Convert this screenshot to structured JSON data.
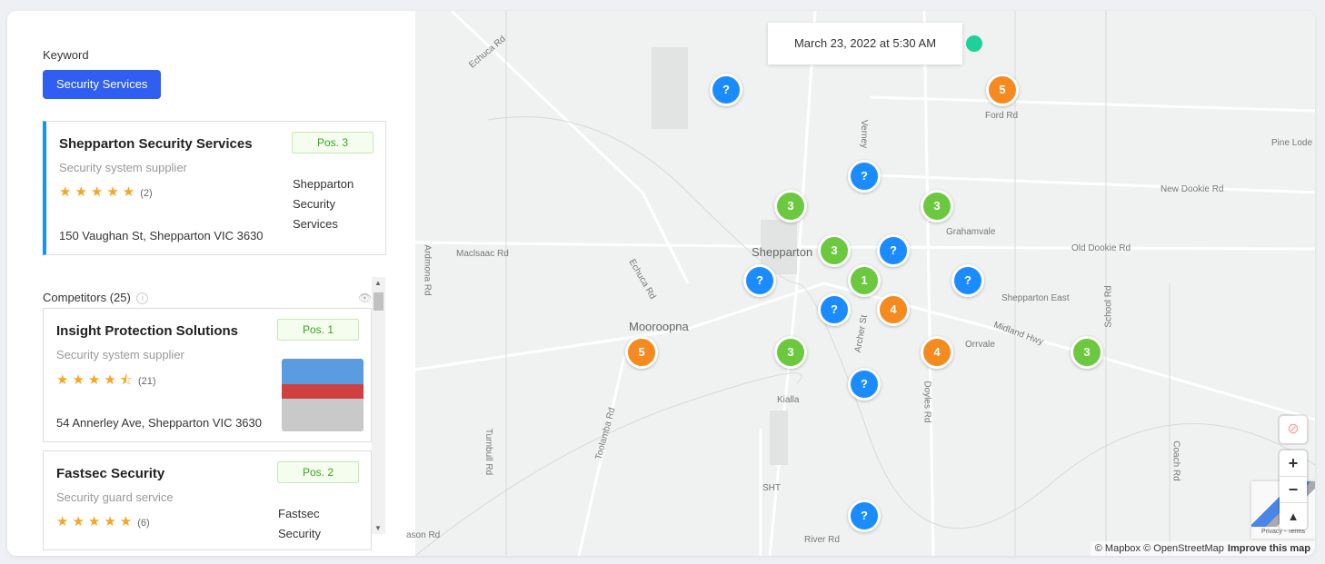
{
  "keyword": {
    "label": "Keyword",
    "button": "Security Services"
  },
  "main_business": {
    "name": "Shepparton Security Services",
    "category": "Security system supplier",
    "rating": 5,
    "stars": "★★★★★",
    "reviews": "(2)",
    "address": "150 Vaughan St, Shepparton VIC 3630",
    "position": "Pos. 3",
    "image_alt": "Shepparton Security Services"
  },
  "competitors": {
    "label": "Competitors (25)",
    "info": "i",
    "eye": "👁",
    "items": [
      {
        "name": "Insight Protection Solutions",
        "category": "Security system supplier",
        "rating": 4.5,
        "stars": "★★★★⯪",
        "reviews": "(21)",
        "address": "54 Annerley Ave, Shepparton VIC 3630",
        "position": "Pos. 1"
      },
      {
        "name": "Fastsec Security",
        "category": "Security guard service",
        "rating": 5,
        "stars": "★★★★★",
        "reviews": "(6)",
        "position": "Pos. 2",
        "image_alt": "Fastsec Security"
      }
    ]
  },
  "map": {
    "timestamp": "March 23, 2022 at 5:30 AM",
    "status_color": "#1ed09a",
    "marker_colors": {
      "green": "#6cc93f",
      "blue": "#1a8cff",
      "orange": "#f58a1f"
    },
    "markers": [
      "?",
      "5",
      "?",
      "3",
      "3",
      "3",
      "?",
      "?",
      "1",
      "?",
      "?",
      "4",
      "5",
      "3",
      "4",
      "3",
      "?",
      "?"
    ],
    "labels": [
      "Echuca Rd",
      "Ford Rd",
      "Pine Lode",
      "New Dookie Rd",
      "Grahamvale",
      "Maclsaac Rd",
      "Old Dookie Rd",
      "Shepparton",
      "Shepparton East",
      "Midland Hwy",
      "Orrvale",
      "Mooroopna",
      "Echuca Rd",
      "Ardmona Rd",
      "Toolamba Rd",
      "Turnbull Rd",
      "Kialla",
      "SHT",
      "River Rd",
      "Coach Rd",
      "School Rd",
      "Archer St",
      "Verney",
      "Doyles Rd",
      "ason Rd"
    ],
    "controls": {
      "zoom_in": "+",
      "zoom_out": "−",
      "compass": "▲"
    },
    "recaptcha": "Privacy - Terms",
    "attribution": "© Mapbox © OpenStreetMap",
    "improve": "Improve this map"
  }
}
